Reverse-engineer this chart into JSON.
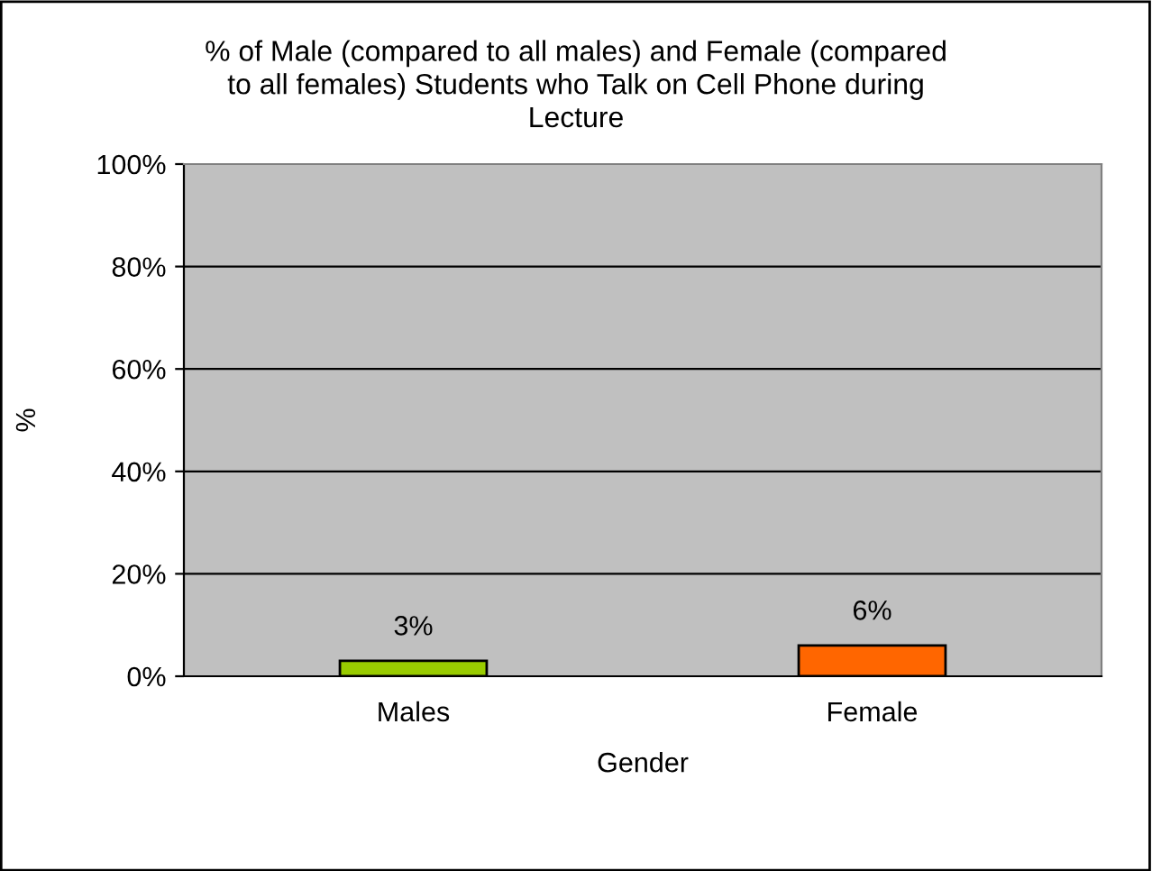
{
  "chart_data": {
    "type": "bar",
    "title": "% of Male (compared to all males) and Female (compared\nto all females) Students who Talk on Cell Phone during\nLecture",
    "xlabel": "Gender",
    "ylabel": "%",
    "categories": [
      "Males",
      "Female"
    ],
    "values": [
      3,
      6
    ],
    "colors": [
      "#99cc00",
      "#ff6600"
    ],
    "value_labels": [
      "3%",
      "6%"
    ],
    "ylim": [
      0,
      100
    ],
    "yticks": [
      {
        "value": 0,
        "label": "0%"
      },
      {
        "value": 20,
        "label": "20%"
      },
      {
        "value": 40,
        "label": "40%"
      },
      {
        "value": 60,
        "label": "60%"
      },
      {
        "value": 80,
        "label": "80%"
      },
      {
        "value": 100,
        "label": "100%"
      }
    ],
    "grid": "y"
  }
}
